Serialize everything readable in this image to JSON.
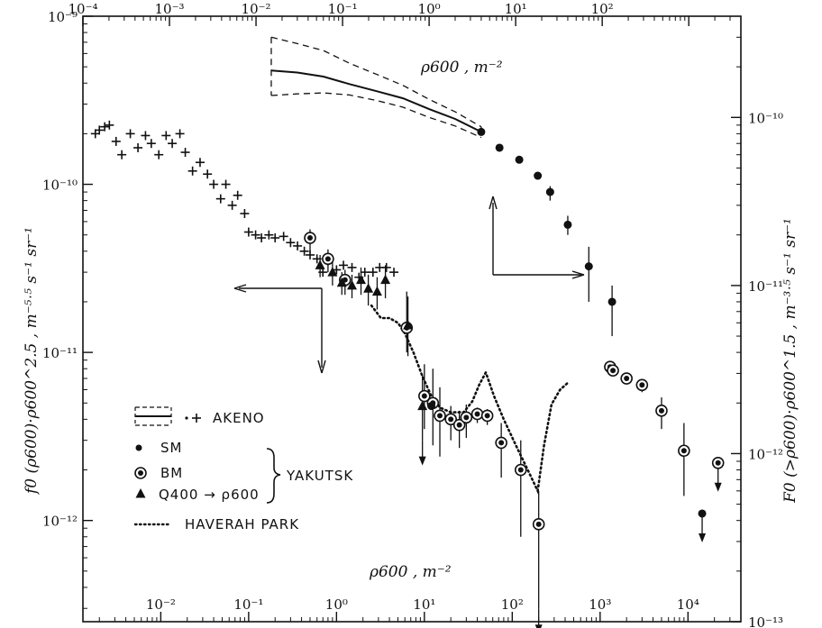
{
  "chart_data": {
    "type": "scatter",
    "title": "",
    "grid": false,
    "legend_position": "lower-left",
    "top_axis": {
      "label": "ρ600 , m⁻²",
      "scale": "log",
      "range": [
        1e-05,
        400
      ],
      "tick_labels": [
        "10⁻⁴",
        "10⁻³",
        "10⁻²",
        "10⁻¹",
        "10⁰",
        "10¹",
        "10²"
      ]
    },
    "bottom_axis": {
      "label": "ρ600 , m⁻²",
      "scale": "log",
      "range": [
        0.0013,
        40000
      ],
      "tick_labels": [
        "10⁻²",
        "10⁻¹",
        "10⁰",
        "10¹",
        "10²",
        "10³",
        "10⁴"
      ]
    },
    "left_axis": {
      "label": "f0 (ρ600)·ρ600^2.5 , m⁻⁵ˑ⁵ s⁻¹ sr⁻¹",
      "scale": "log",
      "range": [
        2.5e-13,
        1e-09
      ],
      "tick_labels": [
        "10⁻⁹",
        "10⁻¹⁰",
        "10⁻¹¹",
        "10⁻¹²"
      ]
    },
    "right_axis": {
      "label": "F0 (>ρ600)·ρ600^1.5 , m⁻³ˑ⁵ s⁻¹ sr⁻¹",
      "scale": "log",
      "range": [
        1e-13,
        4e-10
      ],
      "tick_labels": [
        "10⁻¹⁰",
        "10⁻¹¹",
        "10⁻¹²",
        "10⁻¹³"
      ]
    },
    "legend": [
      {
        "symbol": "band",
        "label": "AKENO"
      },
      {
        "symbol": "cross",
        "label": "AKENO"
      },
      {
        "symbol": "dot",
        "label": "SM"
      },
      {
        "symbol": "ringdot",
        "label": "BM"
      },
      {
        "symbol": "triangle",
        "label": "Q400 → ρ600"
      },
      {
        "symbol": "dotted",
        "label": "HAVERAH PARK"
      }
    ],
    "legend_group_label": "YAKUTSK",
    "series": [
      {
        "name": "AKENO",
        "marker": "cross",
        "axes": "bottom-left",
        "x": [
          0.0018,
          0.002,
          0.0023,
          0.0026,
          0.0031,
          0.0036,
          0.0045,
          0.0055,
          0.0067,
          0.0078,
          0.0095,
          0.0115,
          0.0135,
          0.0165,
          0.019,
          0.023,
          0.028,
          0.034,
          0.04,
          0.048,
          0.055,
          0.065,
          0.075,
          0.09,
          0.1,
          0.12,
          0.14,
          0.17,
          0.2,
          0.25,
          0.3,
          0.36,
          0.43,
          0.5,
          0.6,
          0.7,
          0.8,
          1.0,
          1.2,
          1.5,
          1.8,
          2.1,
          2.6,
          3.1,
          3.7,
          4.5
        ],
        "y": [
          2e-10,
          2.1e-10,
          2.2e-10,
          2.25e-10,
          1.8e-10,
          1.5e-10,
          2e-10,
          1.65e-10,
          1.95e-10,
          1.75e-10,
          1.5e-10,
          1.95e-10,
          1.75e-10,
          2e-10,
          1.55e-10,
          1.2e-10,
          1.35e-10,
          1.15e-10,
          1e-10,
          8.2e-11,
          1e-10,
          7.5e-11,
          8.6e-11,
          6.7e-11,
          5.2e-11,
          5e-11,
          4.8e-11,
          5e-11,
          4.8e-11,
          4.9e-11,
          4.5e-11,
          4.3e-11,
          4e-11,
          3.8e-11,
          3.6e-11,
          3e-11,
          3.5e-11,
          3.1e-11,
          3.3e-11,
          3.2e-11,
          2.8e-11,
          3e-11,
          3e-11,
          3.2e-11,
          3.2e-11,
          3e-11
        ]
      },
      {
        "name": "BM",
        "marker": "ringdot",
        "axes": "bottom-left",
        "x": [
          0.5,
          0.8,
          1.25,
          6.3,
          10,
          12.5,
          15,
          20,
          25,
          30,
          40,
          52,
          75,
          125,
          200,
          1300,
          1400,
          2000,
          3000,
          5000,
          9000,
          22000
        ],
        "y": [
          4.8e-11,
          3.6e-11,
          2.7e-11,
          1.4e-11,
          5.5e-12,
          5e-12,
          4.2e-12,
          4e-12,
          3.7e-12,
          4.1e-12,
          4.3e-12,
          4.2e-12,
          2.9e-12,
          2e-12,
          9.5e-13,
          8.2e-12,
          7.8e-12,
          7e-12,
          6.4e-12,
          4.5e-12,
          2.6e-12,
          2.2e-12
        ],
        "yerr_low": [
          9e-12,
          6e-12,
          5e-12,
          4e-12,
          2e-12,
          2.2e-12,
          1.8e-12,
          1e-12,
          1e-12,
          1e-12,
          5e-13,
          5e-13,
          1.1e-12,
          1.2e-12,
          6.5e-13,
          0,
          0,
          5e-13,
          6e-13,
          1e-12,
          1.2e-12,
          0
        ],
        "yerr_high": [
          6e-12,
          5e-12,
          4e-12,
          9e-12,
          3e-12,
          3e-12,
          2e-12,
          8e-13,
          8e-13,
          8e-13,
          4e-13,
          4e-13,
          9e-13,
          1e-12,
          5.5e-13,
          0,
          0,
          5e-13,
          5e-13,
          9e-13,
          1.2e-12,
          0
        ],
        "upper_limit": [
          false,
          false,
          false,
          false,
          false,
          false,
          false,
          false,
          false,
          false,
          false,
          false,
          false,
          false,
          true,
          false,
          false,
          false,
          false,
          false,
          false,
          true
        ]
      },
      {
        "name": "SM",
        "marker": "dot",
        "axes": "top-right",
        "x": [
          0.4,
          0.65,
          1.1,
          1.8,
          2.5,
          4.0,
          7.0,
          13.0
        ],
        "y": [
          8.2e-11,
          6.6e-11,
          5.6e-11,
          4.5e-11,
          3.6e-11,
          2.3e-11,
          1.3e-11,
          8e-12
        ],
        "yerr_low": [
          0,
          0,
          0,
          0,
          4e-12,
          3e-12,
          5e-12,
          3e-12
        ],
        "yerr_high": [
          0,
          0,
          0,
          0,
          3e-12,
          3e-12,
          4e-12,
          2e-12
        ],
        "upper_limit": [
          false,
          false,
          false,
          false,
          false,
          false,
          false,
          false
        ]
      },
      {
        "name": "SM (bottom scale)",
        "marker": "dot",
        "axes": "bottom-left",
        "x": [
          12,
          14500
        ],
        "y": [
          4.8e-12,
          1.1e-12
        ],
        "upper_limit": [
          false,
          true
        ]
      },
      {
        "name": "Q400 → ρ600",
        "marker": "triangle",
        "axes": "bottom-left",
        "x": [
          0.65,
          0.9,
          1.15,
          1.5,
          1.9,
          2.3,
          2.9,
          3.6,
          6.5,
          9.5
        ],
        "y": [
          3.3e-11,
          3e-11,
          2.6e-11,
          2.5e-11,
          2.7e-11,
          2.4e-11,
          2.3e-11,
          2.7e-11,
          1.45e-11,
          4.8e-12
        ],
        "yerr_low": [
          5e-12,
          5e-12,
          4e-12,
          4e-12,
          5e-12,
          5e-12,
          5e-12,
          6e-12,
          5e-12,
          1.8e-12
        ],
        "yerr_high": [
          5e-12,
          5e-12,
          4e-12,
          4e-12,
          5e-12,
          5e-12,
          5e-12,
          6e-12,
          7e-12,
          2.5e-12
        ],
        "upper_limit": [
          false,
          false,
          false,
          false,
          false,
          false,
          false,
          false,
          false,
          true
        ]
      },
      {
        "name": "HAVERAH PARK",
        "line": "dotted",
        "axes": "bottom-left",
        "x": [
          2.5,
          3.2,
          4.0,
          5.0,
          6.0,
          7.5,
          9.5,
          12,
          15,
          20,
          28,
          35,
          42,
          50,
          62,
          80,
          110,
          150,
          195,
          230,
          280,
          350,
          430
        ],
        "y": [
          1.9e-11,
          1.6e-11,
          1.6e-11,
          1.5e-11,
          1.3e-11,
          1e-11,
          7.2e-12,
          5.5e-12,
          4.7e-12,
          4.4e-12,
          4.4e-12,
          5.1e-12,
          6.4e-12,
          7.6e-12,
          5.5e-12,
          4e-12,
          2.8e-12,
          2e-12,
          1.5e-12,
          2.8e-12,
          4.9e-12,
          6e-12,
          6.6e-12
        ]
      },
      {
        "name": "AKENO integral",
        "line": "solid",
        "axes": "top-right",
        "x": [
          0.0015,
          0.003,
          0.006,
          0.012,
          0.025,
          0.05,
          0.1,
          0.2,
          0.4
        ],
        "y": [
          1.9e-10,
          1.85e-10,
          1.75e-10,
          1.58e-10,
          1.43e-10,
          1.3e-10,
          1.12e-10,
          9.8e-11,
          8.2e-11
        ]
      },
      {
        "name": "AKENO integral upper bound",
        "line": "dashed",
        "axes": "top-right",
        "x": [
          0.0015,
          0.003,
          0.006,
          0.012,
          0.025,
          0.05,
          0.1,
          0.2,
          0.4
        ],
        "y": [
          3e-10,
          2.75e-10,
          2.5e-10,
          2.1e-10,
          1.8e-10,
          1.55e-10,
          1.28e-10,
          1.08e-10,
          8.8e-11
        ]
      },
      {
        "name": "AKENO integral lower bound",
        "line": "dashed",
        "axes": "top-right",
        "x": [
          0.0015,
          0.003,
          0.006,
          0.012,
          0.025,
          0.05,
          0.1,
          0.2,
          0.4
        ],
        "y": [
          1.35e-10,
          1.38e-10,
          1.4e-10,
          1.36e-10,
          1.26e-10,
          1.15e-10,
          1e-10,
          8.9e-11,
          7.6e-11
        ]
      }
    ]
  }
}
